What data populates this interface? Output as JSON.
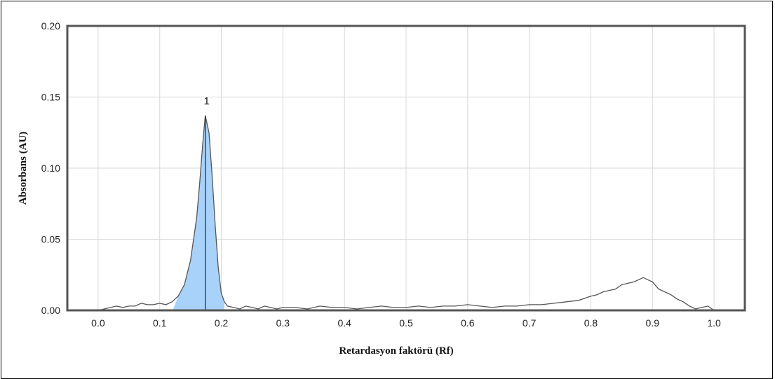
{
  "chart_data": {
    "type": "line",
    "xlabel": "Retardasyon faktörü (Rf)",
    "ylabel": "Absorbans (AU)",
    "xlim": [
      -0.05,
      1.05
    ],
    "ylim": [
      0,
      0.2
    ],
    "x_ticks": [
      0.0,
      0.1,
      0.2,
      0.3,
      0.4,
      0.5,
      0.6,
      0.7,
      0.8,
      0.9,
      1.0
    ],
    "x_tick_labels": [
      "0.0",
      "0.1",
      "0.2",
      "0.3",
      "0.4",
      "0.5",
      "0.6",
      "0.7",
      "0.8",
      "0.9",
      "1.0"
    ],
    "y_ticks": [
      0.0,
      0.05,
      0.1,
      0.15,
      0.2
    ],
    "y_tick_labels": [
      "0.00",
      "0.05",
      "0.10",
      "0.15",
      "0.20"
    ],
    "grid": true,
    "colors": {
      "line": "#555555",
      "peak_fill": "#a9d2fa",
      "grid": "#d8d8d8",
      "frame": "#555555"
    },
    "peaks": [
      {
        "label": "1",
        "rf": 0.174,
        "absorbance": 0.137,
        "fill_start": 0.121,
        "fill_end": 0.205
      }
    ],
    "series": [
      {
        "x": [
          0.0,
          0.01,
          0.02,
          0.03,
          0.04,
          0.05,
          0.06,
          0.07,
          0.08,
          0.09,
          0.1,
          0.11,
          0.12,
          0.13,
          0.14,
          0.15,
          0.16,
          0.165,
          0.17,
          0.174,
          0.18,
          0.185,
          0.19,
          0.195,
          0.2,
          0.205,
          0.21,
          0.22,
          0.23,
          0.24,
          0.25,
          0.26,
          0.27,
          0.28,
          0.29,
          0.3,
          0.32,
          0.34,
          0.36,
          0.38,
          0.4,
          0.42,
          0.44,
          0.46,
          0.48,
          0.5,
          0.52,
          0.54,
          0.56,
          0.58,
          0.6,
          0.62,
          0.64,
          0.66,
          0.68,
          0.7,
          0.72,
          0.74,
          0.76,
          0.78,
          0.8,
          0.81,
          0.82,
          0.83,
          0.84,
          0.85,
          0.86,
          0.87,
          0.88,
          0.885,
          0.89,
          0.9,
          0.91,
          0.92,
          0.93,
          0.94,
          0.95,
          0.96,
          0.97,
          0.98,
          0.99,
          1.0
        ],
        "y": [
          0.0,
          0.001,
          0.002,
          0.003,
          0.002,
          0.003,
          0.003,
          0.005,
          0.004,
          0.004,
          0.005,
          0.004,
          0.006,
          0.01,
          0.018,
          0.035,
          0.065,
          0.09,
          0.118,
          0.137,
          0.125,
          0.095,
          0.06,
          0.03,
          0.012,
          0.006,
          0.003,
          0.002,
          0.001,
          0.003,
          0.002,
          0.001,
          0.003,
          0.002,
          0.001,
          0.002,
          0.002,
          0.001,
          0.003,
          0.002,
          0.002,
          0.001,
          0.002,
          0.003,
          0.002,
          0.002,
          0.003,
          0.002,
          0.003,
          0.003,
          0.004,
          0.003,
          0.002,
          0.003,
          0.003,
          0.004,
          0.004,
          0.005,
          0.006,
          0.007,
          0.01,
          0.011,
          0.013,
          0.014,
          0.015,
          0.018,
          0.019,
          0.02,
          0.022,
          0.023,
          0.022,
          0.02,
          0.015,
          0.013,
          0.011,
          0.008,
          0.006,
          0.003,
          0.001,
          0.002,
          0.003,
          0.0
        ]
      }
    ]
  }
}
